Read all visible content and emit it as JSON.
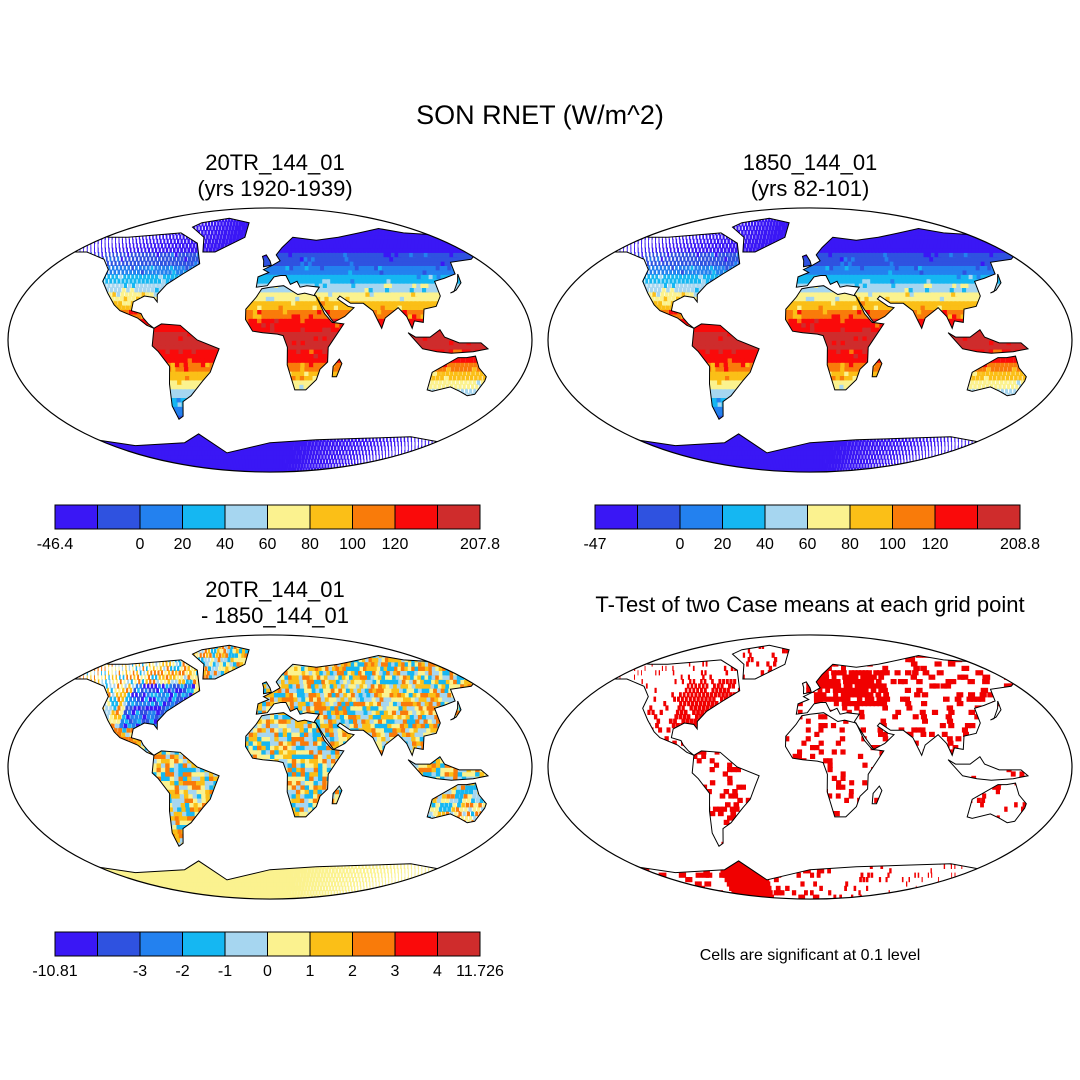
{
  "title": "SON RNET (W/m^2)",
  "panels": [
    {
      "id": "p1",
      "title_lines": [
        "20TR_144_01",
        "(yrs 1920-1939)"
      ],
      "type": "field",
      "colorbar": {
        "colors": [
          "#3a17f5",
          "#2f52e0",
          "#2381ef",
          "#15b7f2",
          "#a6d6f0",
          "#fbf28f",
          "#fbbf17",
          "#f97b0a",
          "#fa0a0a",
          "#cf2c2c"
        ],
        "labels": [
          "-46.4",
          "0",
          "20",
          "40",
          "60",
          "80",
          "100",
          "120",
          "207.8"
        ],
        "label_at_boundary": [
          0,
          2,
          3,
          4,
          5,
          6,
          7,
          8,
          10
        ]
      }
    },
    {
      "id": "p2",
      "title_lines": [
        "1850_144_01",
        "(yrs 82-101)"
      ],
      "type": "field",
      "colorbar": {
        "colors": [
          "#3a17f5",
          "#2f52e0",
          "#2381ef",
          "#15b7f2",
          "#a6d6f0",
          "#fbf28f",
          "#fbbf17",
          "#f97b0a",
          "#fa0a0a",
          "#cf2c2c"
        ],
        "labels": [
          "-47",
          "0",
          "20",
          "40",
          "60",
          "80",
          "100",
          "120",
          "208.8"
        ],
        "label_at_boundary": [
          0,
          2,
          3,
          4,
          5,
          6,
          7,
          8,
          10
        ]
      }
    },
    {
      "id": "p3",
      "title_lines": [
        "20TR_144_01",
        "- 1850_144_01"
      ],
      "type": "difference",
      "colorbar": {
        "colors": [
          "#3a17f5",
          "#2f52e0",
          "#2381ef",
          "#15b7f2",
          "#a6d6f0",
          "#fbf28f",
          "#fbbf17",
          "#f97b0a",
          "#fa0a0a",
          "#cf2c2c"
        ],
        "labels": [
          "-10.81",
          "-3",
          "-2",
          "-1",
          "0",
          "1",
          "2",
          "3",
          "4",
          "11.726"
        ],
        "label_at_boundary": [
          0,
          2,
          3,
          4,
          5,
          6,
          7,
          8,
          9,
          10
        ]
      }
    },
    {
      "id": "p4",
      "title_lines": [
        "T-Test of two Case means at each grid point"
      ],
      "type": "significance",
      "note": "Cells are significant at 0.1 level",
      "significant_color": "#f00000"
    }
  ],
  "colors": {
    "ocean": "#ffffff",
    "coast": "#000000"
  }
}
